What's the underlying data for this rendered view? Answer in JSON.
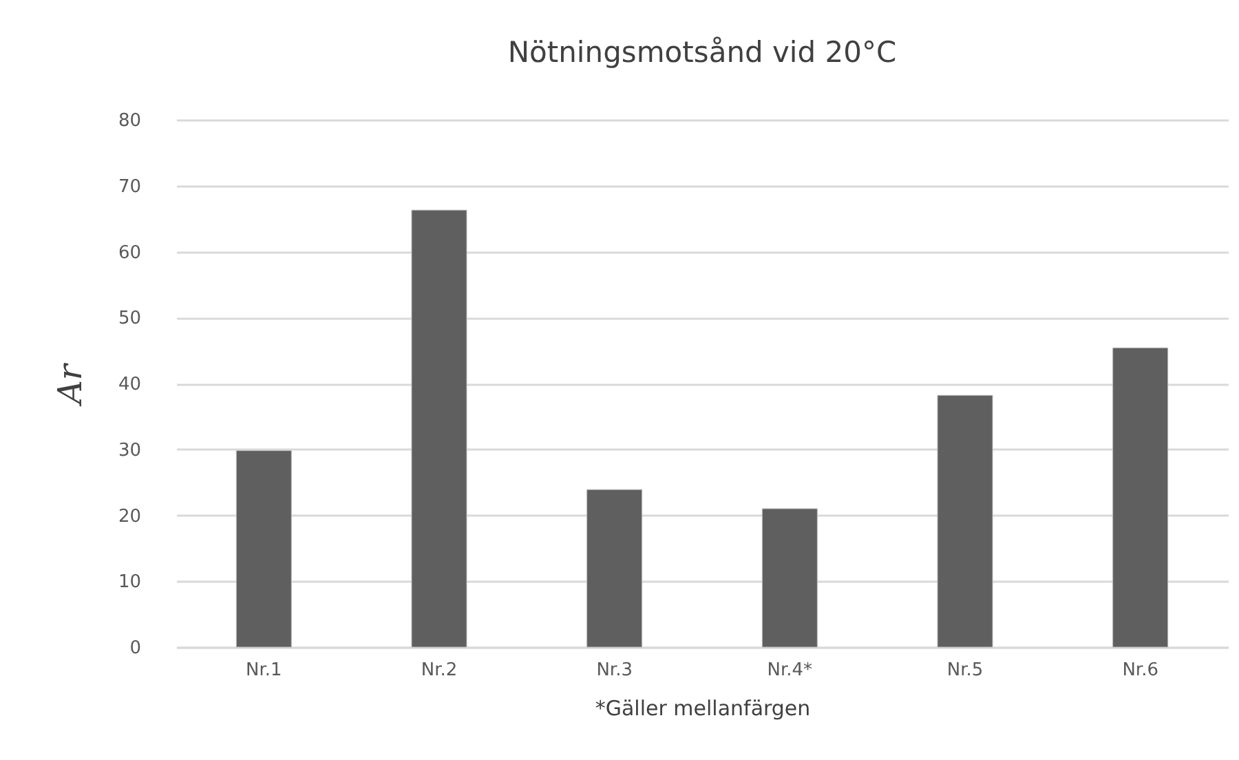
{
  "chart_data": {
    "type": "bar",
    "title": "Nötningsmotsånd vid 20°C",
    "xlabel": "*Gäller mellanfärgen",
    "ylabel": "Ar",
    "categories": [
      "Nr.1",
      "Nr.2",
      "Nr.3",
      "Nr.4*",
      "Nr.5",
      "Nr.6"
    ],
    "values": [
      29.8,
      66.3,
      23.9,
      21.0,
      38.2,
      45.4
    ],
    "color": "#5f5f5f",
    "ylim": [
      0,
      80
    ],
    "yticks": [
      0,
      10,
      20,
      30,
      40,
      50,
      60,
      70,
      80
    ],
    "grid": "y"
  }
}
